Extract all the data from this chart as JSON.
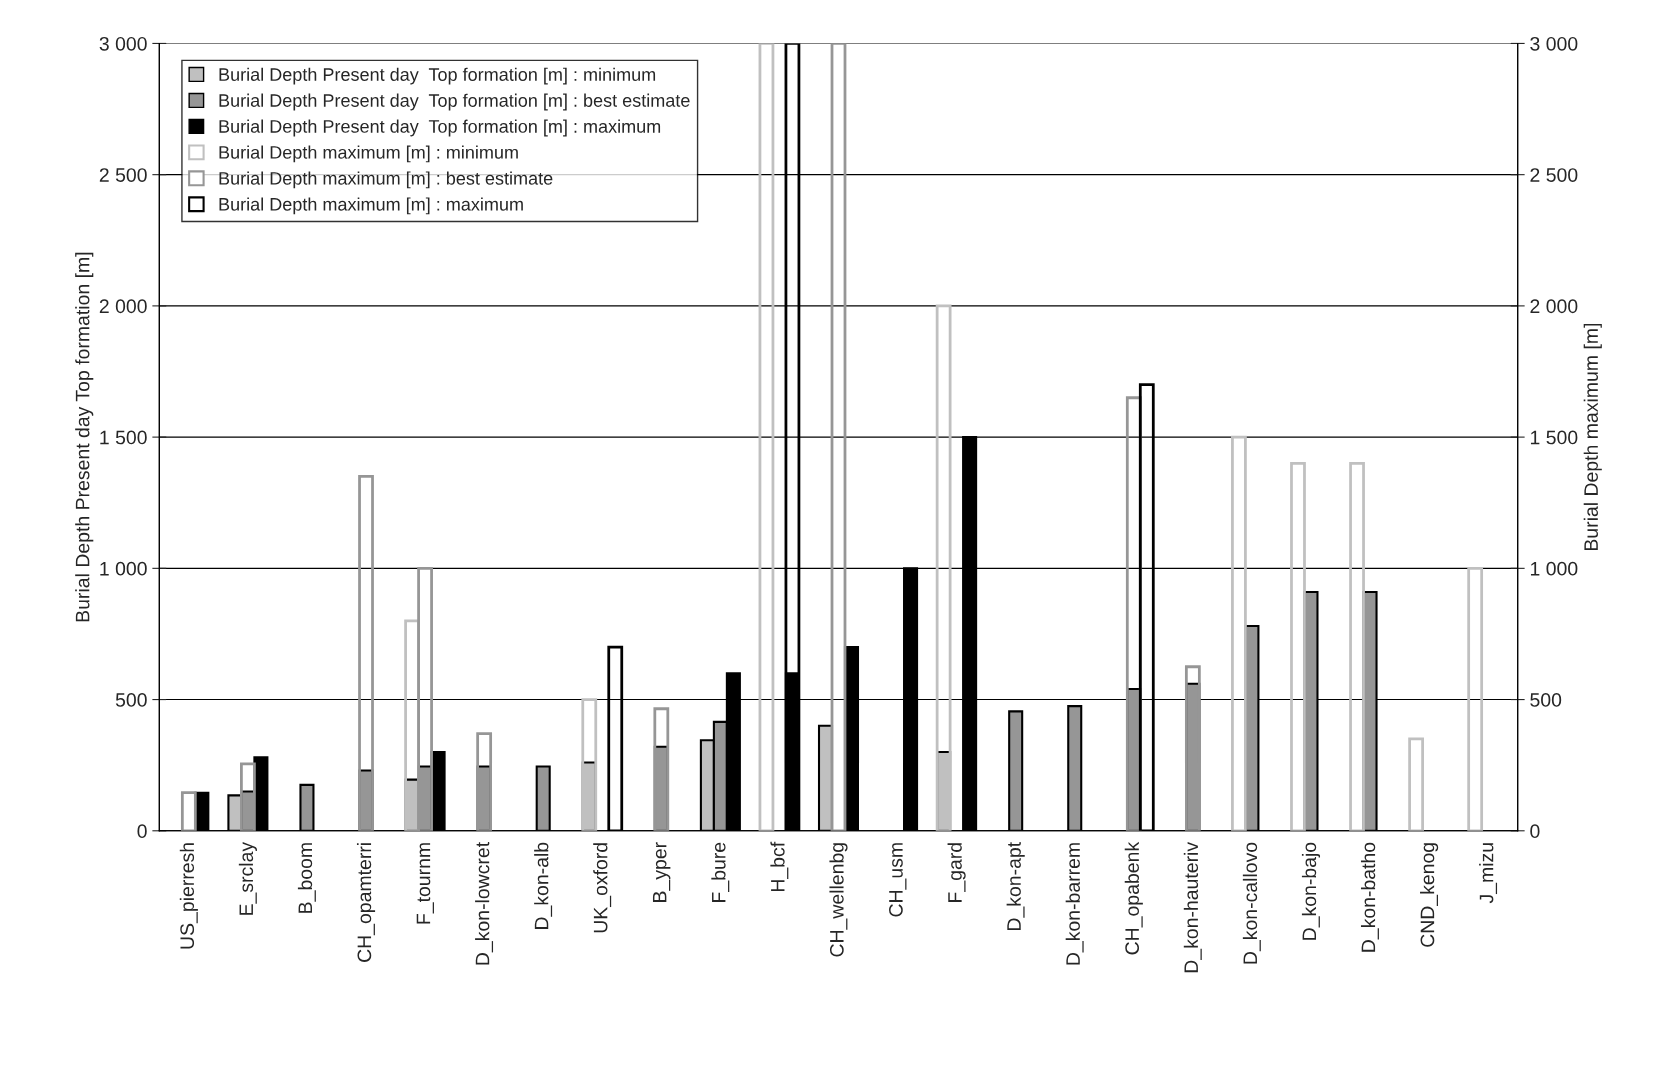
{
  "chart_data": {
    "type": "bar",
    "ylabel": "Burial Depth Present day Top formation [m]",
    "y2label": "Burial Depth maximum [m]",
    "categories": [
      "US_pierresh",
      "E_srclay",
      "B_boom",
      "CH_opamterri",
      "F_tournm",
      "D_kon-lowcret",
      "D_kon-alb",
      "UK_oxford",
      "B_yper",
      "F_bure",
      "H_bcf",
      "CH_wellenbg",
      "CH_usm",
      "F_gard",
      "D_kon-apt",
      "D_kon-barrem",
      "CH_opabenk",
      "D_kon-hauteriv",
      "D_kon-callovo",
      "D_kon-bajo",
      "D_kon-batho",
      "CND_kenog",
      "J_mizu"
    ],
    "series": [
      {
        "name": "Burial Depth Present day  Top formation [m] : minimum",
        "color": "#c0c0c0",
        "values": [
          null,
          135,
          null,
          null,
          195,
          null,
          null,
          260,
          null,
          345,
          null,
          400,
          null,
          300,
          null,
          null,
          null,
          null,
          null,
          null,
          null,
          null,
          null
        ]
      },
      {
        "name": "Burial Depth Present day  Top formation [m] : best estimate",
        "color": "#969696",
        "values": [
          null,
          150,
          175,
          230,
          245,
          245,
          245,
          null,
          320,
          415,
          null,
          null,
          null,
          null,
          455,
          475,
          540,
          560,
          780,
          910,
          910,
          null,
          null
        ]
      },
      {
        "name": "Burial Depth Present day  Top formation [m] : maximum",
        "color": "#000000",
        "values": [
          145,
          280,
          null,
          null,
          300,
          null,
          null,
          null,
          null,
          600,
          600,
          700,
          1000,
          1500,
          null,
          null,
          null,
          null,
          null,
          null,
          null,
          null,
          null
        ]
      },
      {
        "name": "Burial Depth maximum [m] : minimum",
        "color": "#c0c0c0",
        "axis": "y2",
        "values": [
          null,
          null,
          null,
          null,
          800,
          null,
          null,
          500,
          null,
          null,
          3000,
          null,
          null,
          2000,
          null,
          null,
          null,
          null,
          1500,
          1400,
          1400,
          350,
          1000
        ]
      },
      {
        "name": "Burial Depth maximum [m] : best estimate",
        "color": "#969696",
        "axis": "y2",
        "values": [
          145,
          255,
          null,
          1350,
          1000,
          370,
          null,
          null,
          465,
          null,
          null,
          3000,
          null,
          null,
          null,
          null,
          1650,
          625,
          null,
          null,
          null,
          null,
          null
        ]
      },
      {
        "name": "Burial Depth maximum [m] : maximum",
        "color": "#000000",
        "axis": "y2",
        "values": [
          null,
          null,
          null,
          null,
          null,
          null,
          null,
          700,
          null,
          null,
          3000,
          null,
          null,
          null,
          null,
          null,
          1700,
          null,
          null,
          null,
          null,
          null,
          null
        ]
      }
    ],
    "ylim": [
      0,
      3000
    ],
    "yticks": [
      0,
      500,
      {
        "value": 1000,
        "label": "1 000"
      },
      {
        "value": 1500,
        "label": "1 500"
      },
      {
        "value": 2000,
        "label": "2 000"
      },
      {
        "value": 2500,
        "label": "2 500"
      },
      {
        "value": 3000,
        "label": "3 000"
      }
    ],
    "y2lim": [
      0,
      3000
    ],
    "y2ticks": [
      0,
      500,
      {
        "value": 1000,
        "label": "1 000"
      },
      {
        "value": 1500,
        "label": "1 500"
      },
      {
        "value": 2000,
        "label": "2 000"
      },
      {
        "value": 2500,
        "label": "2 500"
      },
      {
        "value": 3000,
        "label": "3 000"
      }
    ],
    "grid": "y",
    "legend": "top left"
  }
}
